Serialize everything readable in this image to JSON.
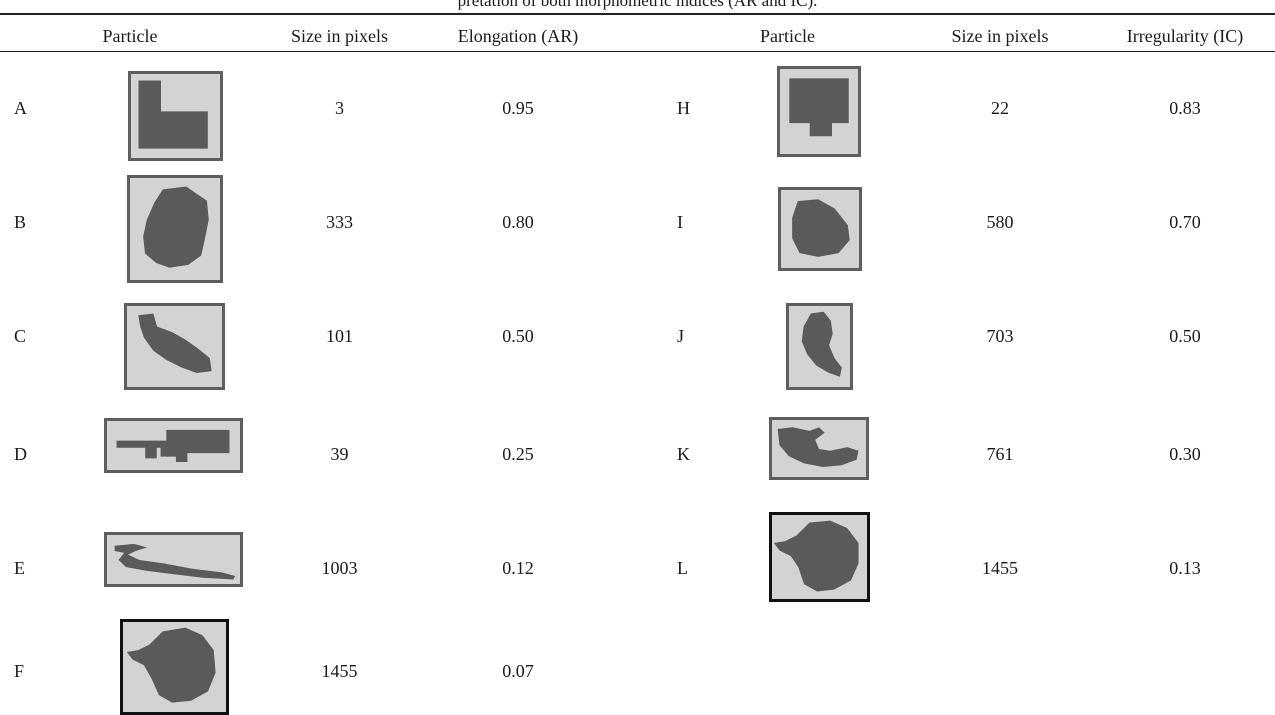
{
  "caption": "pretation of both morphometric indices (AR and IC).",
  "headers": {
    "left_particle": "Particle",
    "left_size": "Size in pixels",
    "left_metric": "Elongation (AR)",
    "right_particle": "Particle",
    "right_size": "Size in pixels",
    "right_metric": "Irregularity (IC)"
  },
  "colors": {
    "particle_fill": "#5a5a5a",
    "thumb_bg": "#d3d3d3",
    "thumb_border": "#5e5e5e",
    "rule": "#222222"
  },
  "left_rows": [
    {
      "label": "A",
      "shape": "l-block-icon",
      "size": "3",
      "value": "0.95"
    },
    {
      "label": "B",
      "shape": "round-blob-icon",
      "size": "333",
      "value": "0.80"
    },
    {
      "label": "C",
      "shape": "diagonal-blob-icon",
      "size": "101",
      "value": "0.50"
    },
    {
      "label": "D",
      "shape": "horizontal-block-icon",
      "size": "39",
      "value": "0.25"
    },
    {
      "label": "E",
      "shape": "elongated-streak-icon",
      "size": "1003",
      "value": "0.12"
    },
    {
      "label": "F",
      "shape": "large-blob-icon",
      "size": "1455",
      "value": "0.07"
    }
  ],
  "right_rows": [
    {
      "label": "H",
      "shape": "square-notch-icon",
      "size": "22",
      "value": "0.83"
    },
    {
      "label": "I",
      "shape": "rounded-blob-icon",
      "size": "580",
      "value": "0.70"
    },
    {
      "label": "J",
      "shape": "tailed-blob-icon",
      "size": "703",
      "value": "0.50"
    },
    {
      "label": "K",
      "shape": "irregular-arc-icon",
      "size": "761",
      "value": "0.30"
    },
    {
      "label": "L",
      "shape": "large-blob-icon",
      "size": "1455",
      "value": "0.13"
    }
  ]
}
